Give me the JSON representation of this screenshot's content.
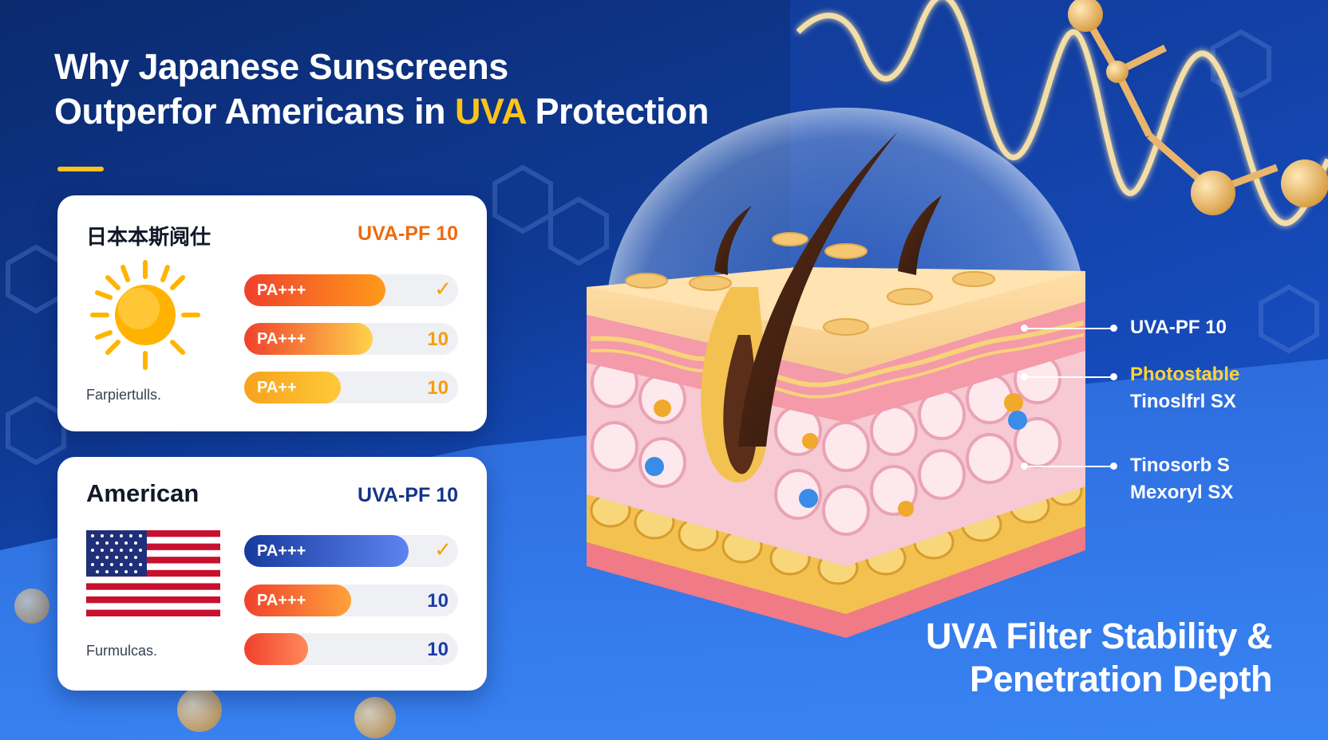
{
  "headline": {
    "line1": "Why Japanese Sunscreens",
    "line2_before": "Outperfor Americans in ",
    "line2_highlight": "UVA",
    "line2_after": " Protection"
  },
  "japan_card": {
    "title": "日本本斯阋仕",
    "metric": "UVA-PF 10",
    "footnote": "Farpiertulls.",
    "icon": "sun-icon",
    "bars": [
      {
        "label": "PA+++",
        "fill": 0.66,
        "value": "",
        "check": "✓",
        "color_from": "#f0412c",
        "color_to": "#ff9a1a"
      },
      {
        "label": "PA+++",
        "fill": 0.6,
        "value": "10",
        "check": "",
        "color_from": "#f0412c",
        "color_to": "#ffd24a"
      },
      {
        "label": "PA++",
        "fill": 0.45,
        "value": "10",
        "check": "",
        "color_from": "#f7a21c",
        "color_to": "#ffc93a"
      }
    ]
  },
  "us_card": {
    "title": "American",
    "metric": "UVA-PF 10",
    "footnote": "Furmulcas.",
    "icon": "us-flag-icon",
    "bars": [
      {
        "label": "PA+++",
        "fill": 0.77,
        "value": "",
        "check": "✓",
        "color_from": "#173a9e",
        "color_to": "#5e83f0"
      },
      {
        "label": "PA+++",
        "fill": 0.5,
        "value": "10",
        "check": "",
        "color_from": "#f0412c",
        "color_to": "#ffa23a"
      },
      {
        "label": "",
        "fill": 0.3,
        "value": "10",
        "check": "",
        "color_from": "#f0412c",
        "color_to": "#ff8a5a"
      }
    ]
  },
  "callouts": {
    "uva_pf": "UVA-PF 10",
    "photostable_label": "Photostable",
    "photostable_filter": "Tinoslfrl SX",
    "filter_1": "Tinosorb S",
    "filter_2": "Mexoryl SX"
  },
  "footer": {
    "line1": "UVA Filter Stability &",
    "line2": "Penetration Depth"
  },
  "colors": {
    "accent_yellow": "#ffc21a",
    "jp_metric": "#ef6a10",
    "us_metric": "#14348c",
    "check_jp": "#f59e0b",
    "check_us": "#f59e0b",
    "value_orange": "#f59e0b",
    "value_blue": "#1d3aa6"
  }
}
